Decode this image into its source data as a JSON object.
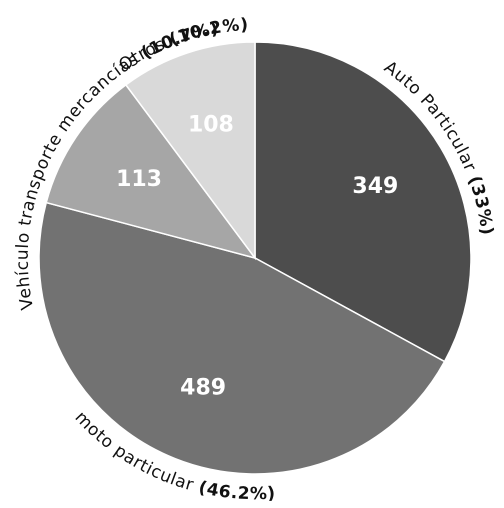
{
  "chart_data": {
    "type": "pie",
    "slices": [
      {
        "label": "Auto Particular",
        "value": 349,
        "percent_label": "(33%)",
        "color": "#4d4d4d"
      },
      {
        "label": "moto particular",
        "value": 489,
        "percent_label": "(46.2%)",
        "color": "#727272"
      },
      {
        "label": "Vehículo transporte mercancías",
        "value": 113,
        "percent_label": "(10.7%)",
        "color": "#a6a6a6"
      },
      {
        "label": "Otros",
        "value": 108,
        "percent_label": "(10.2%)",
        "color": "#d9d9d9"
      }
    ],
    "start": "12 o'clock",
    "direction": "clockwise",
    "legend": "none"
  }
}
